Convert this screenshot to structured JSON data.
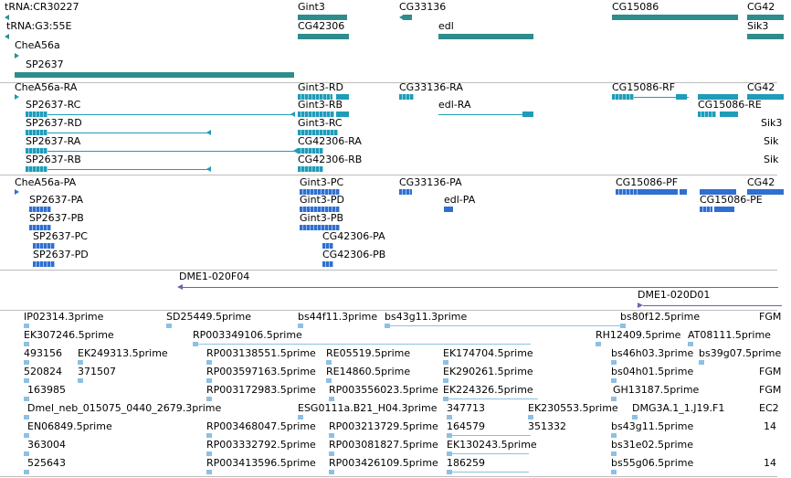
{
  "colors": {
    "gene_track": "#2f8c8c",
    "rna_track": "#1f9cb8",
    "protein_track": "#2f6fd0",
    "clone_track": "#7a5bb0",
    "est_track": "#8ec0e3",
    "separator": "#bdbdbd"
  },
  "genes": {
    "f0": "tRNA:CR30227",
    "f1": "Gint3",
    "f2": "CG33136",
    "f3": "CG15086",
    "f4": "CG42",
    "f5": "tRNA:G3:55E",
    "f6": "CG42306",
    "f7": "edl",
    "f8": "Sik3",
    "f9": "CheA56a",
    "f10": "SP2637"
  },
  "transcripts": {
    "f0": "CheA56a-RA",
    "f1": "Gint3-RD",
    "f2": "CG33136-RA",
    "f3": "CG15086-RF",
    "f4": "CG42",
    "f5": "SP2637-RC",
    "f6": "Gint3-RB",
    "f7": "edl-RA",
    "f8": "CG15086-RE",
    "f9": "SP2637-RD",
    "f10": "Gint3-RC",
    "f11": "Sik3",
    "f12": "SP2637-RA",
    "f13": "CG42306-RA",
    "f14": "Sik",
    "f15": "SP2637-RB",
    "f16": "CG42306-RB",
    "f17": "Sik"
  },
  "proteins": {
    "f0": "CheA56a-PA",
    "f1": "Gint3-PC",
    "f2": "CG33136-PA",
    "f3": "CG15086-PF",
    "f4": "CG42",
    "f5": "SP2637-PA",
    "f6": "Gint3-PD",
    "f7": "edl-PA",
    "f8": "CG15086-PE",
    "f9": "SP2637-PB",
    "f10": "Gint3-PB",
    "f11": "SP2637-PC",
    "f12": "CG42306-PA",
    "f13": "SP2637-PD",
    "f14": "CG42306-PB"
  },
  "clones": {
    "f0": "DME1-020F04",
    "f1": "DME1-020D01"
  },
  "ests": {
    "f0": "IP02314.3prime",
    "f1": "SD25449.5prime",
    "f2": "bs44f11.3prime",
    "f3": "bs43g11.3prime",
    "f4": "bs80f12.5prime",
    "f5": "FGM",
    "f6": "EK307246.5prime",
    "f7": "RP003349106.5prime",
    "f8": "RH12409.5prime",
    "f9": "AT08111.5prime",
    "f10": "493156",
    "f11": "EK249313.5prime",
    "f12": "RP003138551.5prime",
    "f13": "RE05519.5prime",
    "f14": "EK174704.5prime",
    "f15": "bs46h03.3prime",
    "f16": "bs39g07.5prime",
    "f17": "520824",
    "f18": "371507",
    "f19": "RP003597163.5prime",
    "f20": "RE14860.5prime",
    "f21": "EK290261.5prime",
    "f22": "bs04h01.5prime",
    "f23": "FGM",
    "f24": "163985",
    "f25": "RP003172983.5prime",
    "f26": "RP003556023.5prime",
    "f27": "EK224326.5prime",
    "f28": "GH13187.5prime",
    "f29": "FGM",
    "f30": "Dmel_neb_015075_0440_2679.3prime",
    "f31": "ESG0111a.B21_H04.3prime",
    "f32": "347713",
    "f33": "EK230553.5prime",
    "f34": "DMG3A.1_1.J19.F1",
    "f35": "EC2",
    "f36": "EN06849.5prime",
    "f37": "RP003468047.5prime",
    "f38": "RP003213729.5prime",
    "f39": "164579",
    "f40": "351332",
    "f41": "bs43g11.5prime",
    "f42": "14",
    "f43": "363004",
    "f44": "RP003332792.5prime",
    "f45": "RP003081827.5prime",
    "f46": "EK130243.5prime",
    "f47": "bs31e02.5prime",
    "f48": "525643",
    "f49": "RP003413596.5prime",
    "f50": "RP003426109.5prime",
    "f51": "186259",
    "f52": "bs55g06.5prime",
    "f53": "14"
  }
}
